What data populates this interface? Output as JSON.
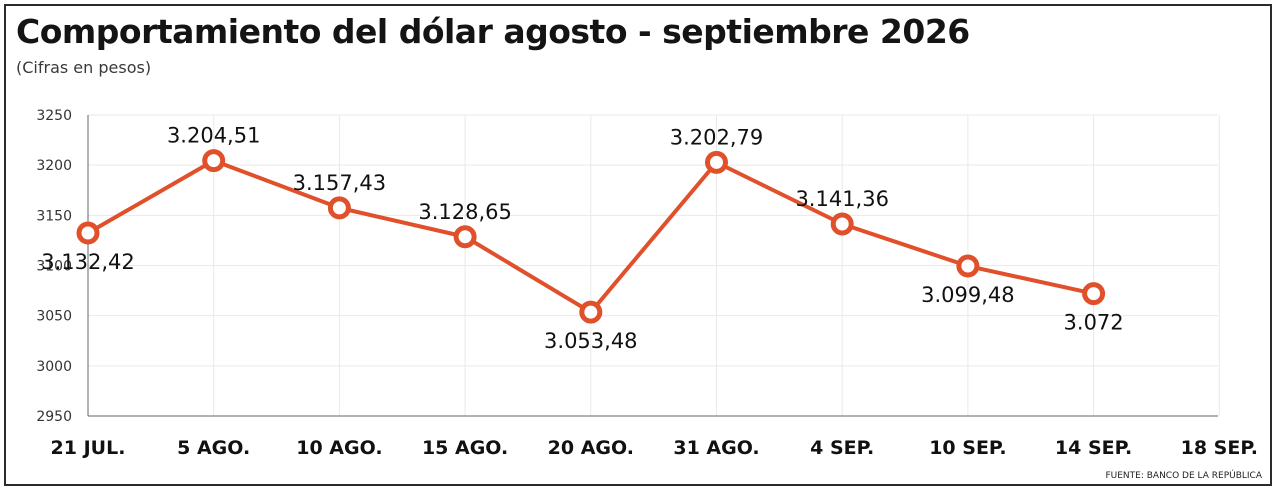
{
  "header": {
    "title": "Comportamiento del dólar agosto - septiembre 2026",
    "subtitle": "(Cifras en pesos)"
  },
  "footer": {
    "source": "FUENTE: BANCO DE LA REPÚBLICA"
  },
  "colors": {
    "series": "#e0502a",
    "grid": "#e9e9e9",
    "axis": "#666666",
    "text": "#111111"
  },
  "chart_data": {
    "type": "line",
    "title": "Comportamiento del dólar agosto - septiembre 2026",
    "subtitle": "(Cifras en pesos)",
    "xlabel": "",
    "ylabel": "",
    "categories": [
      "21 JUL.",
      "5 AGO.",
      "10 AGO.",
      "15 AGO.",
      "20 AGO.",
      "31 AGO.",
      "4 SEP.",
      "10 SEP.",
      "14 SEP.",
      "18 SEP."
    ],
    "series": [
      {
        "values": [
          3132.42,
          3204.51,
          3157.43,
          3128.65,
          3053.48,
          3202.79,
          3141.36,
          3099.48,
          3072,
          null
        ],
        "labels": [
          "3.132,42",
          "3.204,51",
          "3.157,43",
          "3.128,65",
          "3.053,48",
          "3.202,79",
          "3.141,36",
          "3.099,48",
          "3.072",
          ""
        ],
        "label_positions": [
          "below",
          "above",
          "above",
          "above",
          "below",
          "above",
          "above",
          "below",
          "below",
          ""
        ]
      }
    ],
    "yticks": [
      2950,
      3000,
      3050,
      3100,
      3150,
      3200,
      3250
    ],
    "ylim": [
      2950,
      3250
    ],
    "grid": true,
    "legend": "none"
  }
}
